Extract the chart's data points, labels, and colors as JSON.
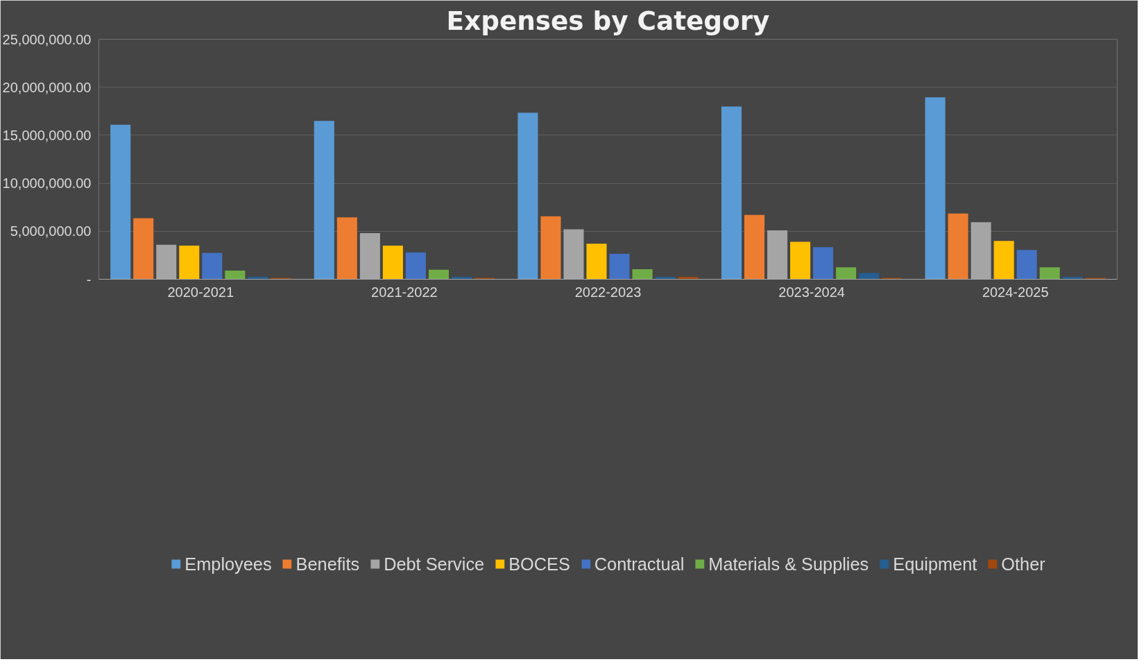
{
  "chart_data": {
    "type": "bar",
    "title": "Expenses by Category",
    "categories": [
      "2020-2021",
      "2021-2022",
      "2022-2023",
      "2023-2024",
      "2024-2025"
    ],
    "series": [
      {
        "name": "Employees",
        "color": "#5b9bd5",
        "values": [
          16100000,
          16500000,
          17350000,
          18000000,
          18950000
        ]
      },
      {
        "name": "Benefits",
        "color": "#ed7d31",
        "values": [
          6350000,
          6450000,
          6550000,
          6700000,
          6850000
        ]
      },
      {
        "name": "Debt Service",
        "color": "#a5a5a5",
        "values": [
          3600000,
          4800000,
          5200000,
          5100000,
          5950000
        ]
      },
      {
        "name": "BOCES",
        "color": "#ffc000",
        "values": [
          3500000,
          3500000,
          3700000,
          3900000,
          4000000
        ]
      },
      {
        "name": "Contractual",
        "color": "#4472c4",
        "values": [
          2750000,
          2800000,
          2650000,
          3350000,
          3050000
        ]
      },
      {
        "name": "Materials & Supplies",
        "color": "#70ad47",
        "values": [
          900000,
          1000000,
          1050000,
          1250000,
          1250000
        ]
      },
      {
        "name": "Equipment",
        "color": "#255e91",
        "values": [
          250000,
          250000,
          250000,
          650000,
          250000
        ]
      },
      {
        "name": "Other",
        "color": "#9e480e",
        "values": [
          150000,
          150000,
          250000,
          150000,
          150000
        ]
      }
    ],
    "ylim": [
      0,
      25000000
    ],
    "yticks": [
      {
        "value": 0,
        "label": "-"
      },
      {
        "value": 5000000,
        "label": "5,000,000.00"
      },
      {
        "value": 10000000,
        "label": "10,000,000.00"
      },
      {
        "value": 15000000,
        "label": "15,000,000.00"
      },
      {
        "value": 20000000,
        "label": "20,000,000.00"
      },
      {
        "value": 25000000,
        "label": "25,000,000.00"
      }
    ],
    "grid": "y",
    "legend": "bottom"
  }
}
